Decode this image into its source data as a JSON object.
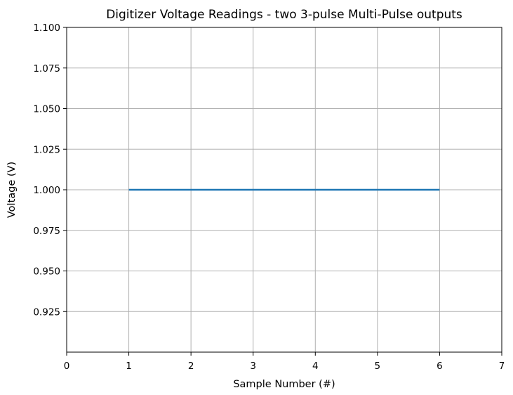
{
  "chart_data": {
    "type": "line",
    "title": "Digitizer Voltage Readings - two 3-pulse Multi-Pulse outputs",
    "xlabel": "Sample Number (#)",
    "ylabel": "Voltage (V)",
    "xlim": [
      0,
      7
    ],
    "ylim": [
      0.9,
      1.1
    ],
    "x_ticks": [
      0,
      1,
      2,
      3,
      4,
      5,
      6,
      7
    ],
    "x_tick_labels": [
      "0",
      "1",
      "2",
      "3",
      "4",
      "5",
      "6",
      "7"
    ],
    "y_ticks": [
      0.925,
      0.95,
      0.975,
      1.0,
      1.025,
      1.05,
      1.075,
      1.1
    ],
    "y_tick_labels": [
      "0.925",
      "0.950",
      "0.975",
      "1.000",
      "1.025",
      "1.050",
      "1.075",
      "1.100"
    ],
    "grid": true,
    "series": [
      {
        "x": [
          1,
          2,
          3,
          4,
          5,
          6
        ],
        "y": [
          1.0,
          1.0,
          1.0,
          1.0,
          1.0,
          1.0
        ],
        "color": "#1f77b4"
      }
    ]
  }
}
